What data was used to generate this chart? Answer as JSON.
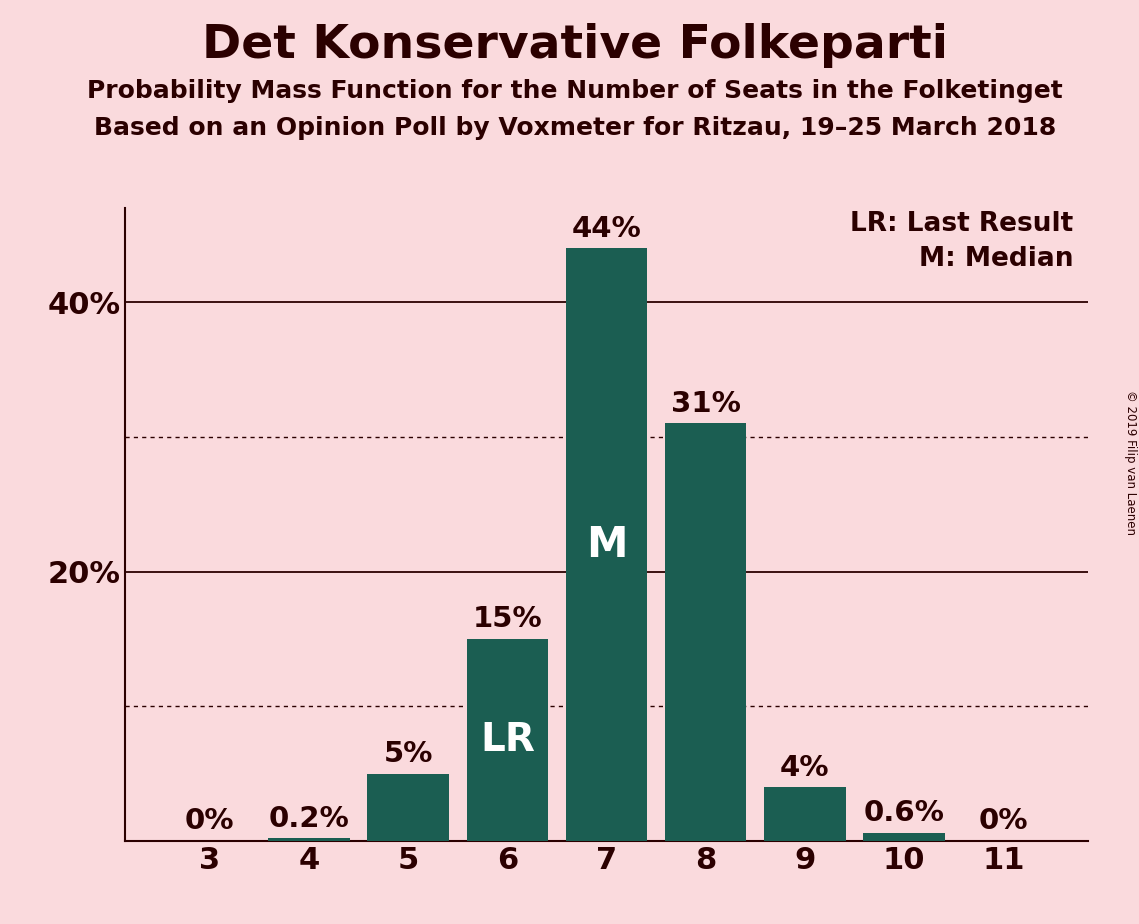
{
  "title": "Det Konservative Folkeparti",
  "subtitle1": "Probability Mass Function for the Number of Seats in the Folketinget",
  "subtitle2": "Based on an Opinion Poll by Voxmeter for Ritzau, 19–25 March 2018",
  "copyright": "© 2019 Filip van Laenen",
  "categories": [
    3,
    4,
    5,
    6,
    7,
    8,
    9,
    10,
    11
  ],
  "values": [
    0.0,
    0.2,
    5.0,
    15.0,
    44.0,
    31.0,
    4.0,
    0.6,
    0.0
  ],
  "bar_color": "#1B5E52",
  "background_color": "#FADADD",
  "text_color": "#2B0000",
  "bar_labels": [
    "0%",
    "0.2%",
    "5%",
    "15%",
    "44%",
    "31%",
    "4%",
    "0.6%",
    "0%"
  ],
  "lr_bar_index": 3,
  "median_bar_index": 4,
  "dotted_lines": [
    10,
    30
  ],
  "solid_lines": [
    20,
    40
  ],
  "ylim": [
    0,
    47
  ],
  "legend_line1": "LR: Last Result",
  "legend_line2": "M: Median",
  "title_fontsize": 34,
  "subtitle_fontsize": 18,
  "label_fontsize": 21,
  "tick_fontsize": 22,
  "legend_fontsize": 19,
  "bar_width": 0.82
}
